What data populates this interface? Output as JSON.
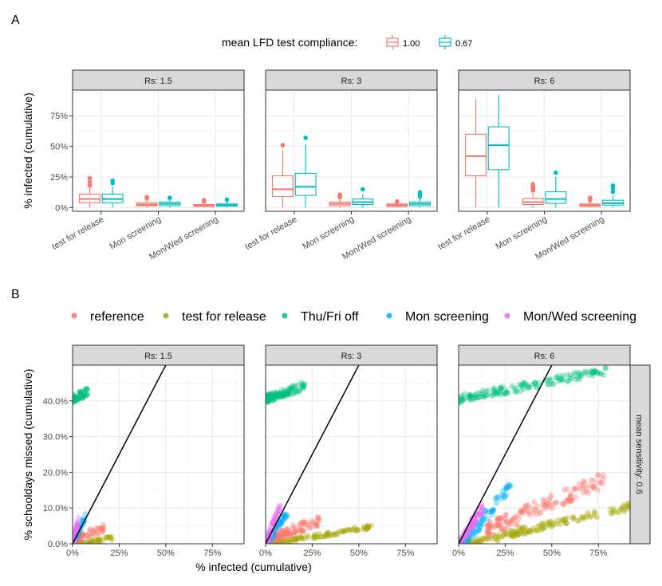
{
  "figure": {
    "panel_a_label": "A",
    "panel_b_label": "B"
  },
  "chart_data": [
    {
      "type": "box",
      "panel": "A",
      "legend": {
        "title": "mean LFD test compliance:",
        "entries": [
          {
            "label": "1.00",
            "color": "#F8766D"
          },
          {
            "label": "0.67",
            "color": "#00BFC4"
          }
        ]
      },
      "ylabel": "% infected (cumulative)",
      "xlabel": "",
      "ylim": [
        -0.03,
        0.96
      ],
      "yticks": [
        {
          "value": 0,
          "label": "0%"
        },
        {
          "value": 0.25,
          "label": "25%"
        },
        {
          "value": 0.5,
          "label": "50%"
        },
        {
          "value": 0.75,
          "label": "75%"
        }
      ],
      "categories": [
        "test for release",
        "Mon screening",
        "Mon/Wed screening"
      ],
      "facets": [
        {
          "label": "Rs: 1.5",
          "groups": [
            {
              "category": "test for release",
              "compliance": "1.00",
              "stats": [
                0.0,
                0.04,
                0.07,
                0.11,
                0.16
              ],
              "outliers": [
                0.18,
                0.21,
                0.24
              ]
            },
            {
              "category": "test for release",
              "compliance": "0.67",
              "stats": [
                0.0,
                0.04,
                0.07,
                0.11,
                0.17
              ],
              "outliers": [
                0.2,
                0.22
              ]
            },
            {
              "category": "Mon screening",
              "compliance": "1.00",
              "stats": [
                0.0,
                0.015,
                0.025,
                0.04,
                0.065
              ],
              "outliers": [
                0.075,
                0.085
              ]
            },
            {
              "category": "Mon screening",
              "compliance": "0.67",
              "stats": [
                0.0,
                0.015,
                0.03,
                0.045,
                0.07
              ],
              "outliers": [
                0.08
              ]
            },
            {
              "category": "Mon/Wed screening",
              "compliance": "1.00",
              "stats": [
                0.0,
                0.01,
                0.015,
                0.025,
                0.04
              ],
              "outliers": [
                0.05,
                0.06
              ]
            },
            {
              "category": "Mon/Wed screening",
              "compliance": "0.67",
              "stats": [
                0.0,
                0.012,
                0.02,
                0.03,
                0.05
              ],
              "outliers": [
                0.065
              ]
            }
          ]
        },
        {
          "label": "Rs: 3",
          "groups": [
            {
              "category": "test for release",
              "compliance": "1.00",
              "stats": [
                0.0,
                0.09,
                0.15,
                0.26,
                0.47
              ],
              "outliers": [
                0.51
              ]
            },
            {
              "category": "test for release",
              "compliance": "0.67",
              "stats": [
                0.0,
                0.1,
                0.17,
                0.28,
                0.52
              ],
              "outliers": [
                0.57
              ]
            },
            {
              "category": "Mon screening",
              "compliance": "1.00",
              "stats": [
                0.0,
                0.015,
                0.03,
                0.045,
                0.075
              ],
              "outliers": [
                0.085,
                0.095,
                0.105
              ]
            },
            {
              "category": "Mon screening",
              "compliance": "0.67",
              "stats": [
                0.0,
                0.025,
                0.045,
                0.07,
                0.11
              ],
              "outliers": [
                0.15
              ]
            },
            {
              "category": "Mon/Wed screening",
              "compliance": "1.00",
              "stats": [
                0.0,
                0.01,
                0.02,
                0.03,
                0.045
              ],
              "outliers": [
                0.05
              ]
            },
            {
              "category": "Mon/Wed screening",
              "compliance": "0.67",
              "stats": [
                0.0,
                0.015,
                0.03,
                0.045,
                0.075
              ],
              "outliers": [
                0.09,
                0.11,
                0.125
              ]
            }
          ]
        },
        {
          "label": "Rs: 6",
          "groups": [
            {
              "category": "test for release",
              "compliance": "1.00",
              "stats": [
                0.0,
                0.26,
                0.42,
                0.6,
                0.89
              ],
              "outliers": []
            },
            {
              "category": "test for release",
              "compliance": "0.67",
              "stats": [
                0.0,
                0.31,
                0.51,
                0.66,
                0.92
              ],
              "outliers": []
            },
            {
              "category": "Mon screening",
              "compliance": "1.00",
              "stats": [
                0.0,
                0.025,
                0.045,
                0.075,
                0.12
              ],
              "outliers": [
                0.14,
                0.16,
                0.175,
                0.19
              ]
            },
            {
              "category": "Mon screening",
              "compliance": "0.67",
              "stats": [
                0.0,
                0.035,
                0.07,
                0.13,
                0.25
              ],
              "outliers": [
                0.285
              ]
            },
            {
              "category": "Mon/Wed screening",
              "compliance": "1.00",
              "stats": [
                0.0,
                0.01,
                0.02,
                0.03,
                0.05
              ],
              "outliers": [
                0.06,
                0.07,
                0.08
              ]
            },
            {
              "category": "Mon/Wed screening",
              "compliance": "0.67",
              "stats": [
                0.0,
                0.02,
                0.035,
                0.06,
                0.1
              ],
              "outliers": [
                0.13,
                0.16,
                0.18
              ]
            }
          ]
        }
      ]
    },
    {
      "type": "scatter",
      "panel": "B",
      "legend": {
        "entries": [
          {
            "label": "reference",
            "color": "#F8766D"
          },
          {
            "label": "test for release",
            "color": "#A3A500"
          },
          {
            "label": "Thu/Fri off",
            "color": "#00BF7D"
          },
          {
            "label": "Mon screening",
            "color": "#00B0F6"
          },
          {
            "label": "Mon/Wed screening",
            "color": "#E76BF3"
          }
        ]
      },
      "xlabel": "% infected (cumulative)",
      "ylabel": "% schooldays missed (cumulative)",
      "xlim": [
        0,
        0.92
      ],
      "ylim": [
        0,
        0.5
      ],
      "xticks": [
        {
          "value": 0,
          "label": "0%"
        },
        {
          "value": 0.25,
          "label": "25%"
        },
        {
          "value": 0.5,
          "label": "50%"
        },
        {
          "value": 0.75,
          "label": "75%"
        }
      ],
      "yticks": [
        {
          "value": 0,
          "label": "0.0%"
        },
        {
          "value": 0.1,
          "label": "10.0%"
        },
        {
          "value": 0.2,
          "label": "20.0%"
        },
        {
          "value": 0.3,
          "label": "30.0%"
        },
        {
          "value": 0.4,
          "label": "40.0%"
        }
      ],
      "strip_right": "mean sensitivity: 0.6",
      "reference_line": {
        "slope": 1,
        "intercept": 0
      },
      "facets": [
        {
          "label": "Rs: 1.5",
          "clouds": [
            {
              "strategy": "Thu/Fri off",
              "x": [
                0.0,
                0.08
              ],
              "y_start": 0.405,
              "slope": 0.25,
              "spread": 0.012,
              "n": 60
            },
            {
              "strategy": "test for release",
              "x": [
                0.02,
                0.22
              ],
              "y_start": 0.0,
              "slope": 0.08,
              "spread": 0.006,
              "n": 55
            },
            {
              "strategy": "reference",
              "x": [
                0.03,
                0.17
              ],
              "y_start": 0.015,
              "slope": 0.22,
              "spread": 0.012,
              "n": 45
            },
            {
              "strategy": "Mon screening",
              "x": [
                0.0,
                0.07
              ],
              "y_start": 0.0,
              "slope": 1.1,
              "spread": 0.008,
              "n": 40
            },
            {
              "strategy": "Mon/Wed screening",
              "x": [
                0.0,
                0.035
              ],
              "y_start": 0.0,
              "slope": 2.0,
              "spread": 0.01,
              "n": 40
            }
          ]
        },
        {
          "label": "Rs: 3",
          "clouds": [
            {
              "strategy": "Thu/Fri off",
              "x": [
                0.0,
                0.21
              ],
              "y_start": 0.405,
              "slope": 0.18,
              "spread": 0.012,
              "n": 110
            },
            {
              "strategy": "test for release",
              "x": [
                0.03,
                0.57
              ],
              "y_start": 0.0,
              "slope": 0.09,
              "spread": 0.006,
              "n": 110
            },
            {
              "strategy": "reference",
              "x": [
                0.05,
                0.3
              ],
              "y_start": 0.02,
              "slope": 0.18,
              "spread": 0.015,
              "n": 90
            },
            {
              "strategy": "Mon screening",
              "x": [
                0.0,
                0.12
              ],
              "y_start": 0.0,
              "slope": 0.75,
              "spread": 0.01,
              "n": 60
            },
            {
              "strategy": "Mon/Wed screening",
              "x": [
                0.0,
                0.08
              ],
              "y_start": 0.0,
              "slope": 1.3,
              "spread": 0.012,
              "n": 60
            }
          ]
        },
        {
          "label": "Rs: 6",
          "clouds": [
            {
              "strategy": "Thu/Fri off",
              "x": [
                0.0,
                0.8
              ],
              "y_start": 0.405,
              "slope": 0.1,
              "spread": 0.012,
              "n": 140
            },
            {
              "strategy": "test for release",
              "x": [
                0.05,
                0.92
              ],
              "y_start": 0.0,
              "slope": 0.12,
              "spread": 0.01,
              "n": 150
            },
            {
              "strategy": "reference",
              "x": [
                0.15,
                0.78
              ],
              "y_start": 0.04,
              "slope": 0.22,
              "spread": 0.022,
              "n": 140
            },
            {
              "strategy": "Mon screening",
              "x": [
                0.02,
                0.28
              ],
              "y_start": 0.0,
              "slope": 0.62,
              "spread": 0.018,
              "n": 80
            },
            {
              "strategy": "Mon/Wed screening",
              "x": [
                0.0,
                0.13
              ],
              "y_start": 0.0,
              "slope": 0.78,
              "spread": 0.014,
              "n": 80
            }
          ]
        }
      ]
    }
  ]
}
